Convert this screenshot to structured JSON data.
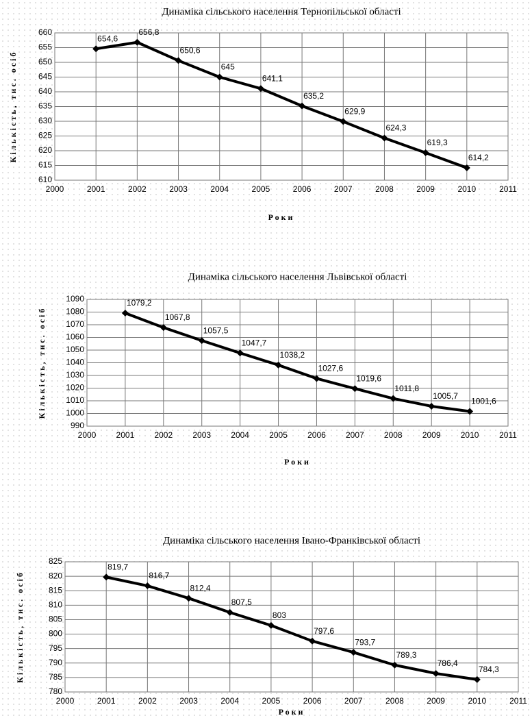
{
  "chart_data": [
    {
      "type": "line",
      "title": "Динаміка сільського населення Тернопільської області",
      "x_label": "Роки",
      "y_label": "Кількість, тис. осіб",
      "x": [
        2001,
        2002,
        2003,
        2004,
        2005,
        2006,
        2007,
        2008,
        2009,
        2010
      ],
      "values": [
        654.6,
        656.8,
        650.6,
        645,
        641.1,
        635.2,
        629.9,
        624.3,
        619.3,
        614.2
      ],
      "value_labels": [
        "654,6",
        "656,8",
        "650,6",
        "645",
        "641,1",
        "635,2",
        "629,9",
        "624,3",
        "619,3",
        "614,2"
      ],
      "color": "#000000",
      "xlim": [
        2000,
        2011
      ],
      "xticks": [
        2000,
        2001,
        2002,
        2003,
        2004,
        2005,
        2006,
        2007,
        2008,
        2009,
        2010,
        2011
      ],
      "ylim": [
        610,
        660
      ],
      "yticks": [
        610,
        615,
        620,
        625,
        630,
        635,
        640,
        645,
        650,
        655,
        660
      ],
      "grid": true
    },
    {
      "type": "line",
      "title": "Динаміка сільського населення Львівської області",
      "x_label": "Роки",
      "y_label": "Кількість, тис. осіб",
      "x": [
        2001,
        2002,
        2003,
        2004,
        2005,
        2006,
        2007,
        2008,
        2009,
        2010
      ],
      "values": [
        1079.2,
        1067.8,
        1057.5,
        1047.7,
        1038.2,
        1027.6,
        1019.6,
        1011.8,
        1005.7,
        1001.6
      ],
      "value_labels": [
        "1079,2",
        "1067,8",
        "1057,5",
        "1047,7",
        "1038,2",
        "1027,6",
        "1019,6",
        "1011,8",
        "1005,7",
        "1001,6"
      ],
      "color": "#000000",
      "xlim": [
        2000,
        2011
      ],
      "xticks": [
        2000,
        2001,
        2002,
        2003,
        2004,
        2005,
        2006,
        2007,
        2008,
        2009,
        2010,
        2011
      ],
      "ylim": [
        990,
        1090
      ],
      "yticks": [
        990,
        1000,
        1010,
        1020,
        1030,
        1040,
        1050,
        1060,
        1070,
        1080,
        1090
      ],
      "grid": true
    },
    {
      "type": "line",
      "title": "Динаміка сільського населення Івано-Франківської області",
      "x_label": "Роки",
      "y_label": "Кількість, тис. осіб",
      "x": [
        2001,
        2002,
        2003,
        2004,
        2005,
        2006,
        2007,
        2008,
        2009,
        2010
      ],
      "values": [
        819.7,
        816.7,
        812.4,
        807.5,
        803,
        797.6,
        793.7,
        789.3,
        786.4,
        784.3
      ],
      "value_labels": [
        "819,7",
        "816,7",
        "812,4",
        "807,5",
        "803",
        "797,6",
        "793,7",
        "789,3",
        "786,4",
        "784,3"
      ],
      "color": "#000000",
      "xlim": [
        2000,
        2011
      ],
      "xticks": [
        2000,
        2001,
        2002,
        2003,
        2004,
        2005,
        2006,
        2007,
        2008,
        2009,
        2010,
        2011
      ],
      "ylim": [
        780,
        825
      ],
      "yticks": [
        780,
        785,
        790,
        795,
        800,
        805,
        810,
        815,
        820,
        825
      ],
      "grid": true
    }
  ]
}
